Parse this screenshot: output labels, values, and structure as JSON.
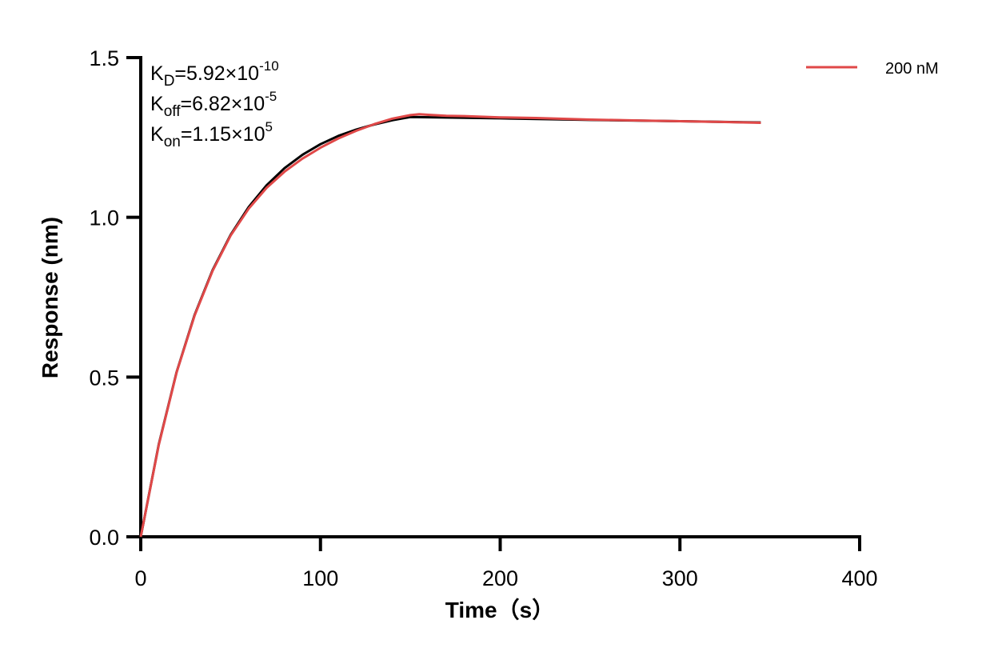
{
  "chart_data": {
    "type": "line",
    "xlabel": "Time（s）",
    "ylabel": "Response (nm)",
    "xlim": [
      0,
      400
    ],
    "ylim": [
      0,
      1.5
    ],
    "xticks": [
      "0",
      "100",
      "200",
      "300",
      "400"
    ],
    "yticks": [
      "0.0",
      "0.5",
      "1.0",
      "1.5"
    ],
    "grid": false,
    "legend_placement": "top-right",
    "annotations": [
      {
        "base": "K",
        "sub": "D",
        "value": "=5.92×10",
        "exp": "-10"
      },
      {
        "base": "K",
        "sub": "off",
        "value": "=6.82×10",
        "exp": "-5"
      },
      {
        "base": "K",
        "sub": "on",
        "value": "=1.15×10",
        "exp": "5"
      }
    ],
    "series": [
      {
        "name": "200 nM",
        "color": "#e04848",
        "x": [
          0,
          10,
          20,
          30,
          40,
          50,
          60,
          70,
          80,
          90,
          100,
          110,
          120,
          130,
          140,
          150,
          155,
          160,
          170,
          180,
          200,
          220,
          250,
          280,
          300,
          320,
          345
        ],
        "y": [
          0,
          0.287,
          0.515,
          0.693,
          0.833,
          0.943,
          1.027,
          1.092,
          1.143,
          1.184,
          1.218,
          1.247,
          1.271,
          1.292,
          1.309,
          1.32,
          1.323,
          1.321,
          1.318,
          1.317,
          1.313,
          1.311,
          1.306,
          1.303,
          1.301,
          1.299,
          1.296
        ]
      },
      {
        "color": "#000000",
        "x": [
          0,
          10,
          20,
          30,
          40,
          50,
          60,
          70,
          80,
          90,
          100,
          110,
          120,
          130,
          140,
          150,
          200,
          250,
          300,
          345
        ],
        "y": [
          0,
          0.289,
          0.516,
          0.695,
          0.835,
          0.945,
          1.032,
          1.1,
          1.154,
          1.196,
          1.229,
          1.255,
          1.275,
          1.291,
          1.304,
          1.314,
          1.31,
          1.305,
          1.301,
          1.297
        ]
      }
    ]
  }
}
